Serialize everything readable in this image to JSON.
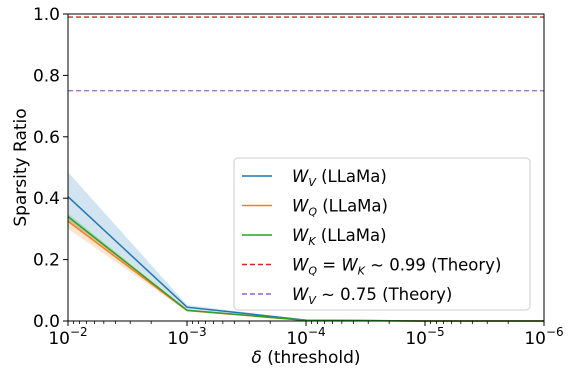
{
  "chart_data": {
    "type": "line",
    "title": "",
    "xlabel": "δ (threshold)",
    "ylabel": "Sparsity Ratio",
    "x_scale": "log-reversed",
    "x_ticks": [
      {
        "value": 0.01,
        "base": "10",
        "exp": "−2"
      },
      {
        "value": 0.001,
        "base": "10",
        "exp": "−3"
      },
      {
        "value": 0.0001,
        "base": "10",
        "exp": "−4"
      },
      {
        "value": 1e-05,
        "base": "10",
        "exp": "−5"
      },
      {
        "value": 1e-06,
        "base": "10",
        "exp": "−6"
      }
    ],
    "xlim": [
      0.01,
      1e-06
    ],
    "ylim": [
      0.0,
      1.0
    ],
    "y_ticks": [
      "0.0",
      "0.2",
      "0.4",
      "0.6",
      "0.8",
      "1.0"
    ],
    "grid": false,
    "legend_position": "lower-right",
    "x": [
      0.01,
      0.001,
      0.0001,
      1e-05,
      1e-06
    ],
    "series": [
      {
        "name": "W_V (LLaMa)",
        "label_main": "W",
        "label_sub": "V",
        "label_rest": " (LLaMa)",
        "color": "#1f77b4",
        "style": "solid",
        "values": [
          0.405,
          0.045,
          0.003,
          0.0,
          0.0
        ],
        "band_upper": [
          0.485,
          0.052,
          0.004,
          0.0,
          0.0
        ],
        "band_lower": [
          0.33,
          0.038,
          0.002,
          0.0,
          0.0
        ]
      },
      {
        "name": "W_Q (LLaMa)",
        "label_main": "W",
        "label_sub": "Q",
        "label_rest": " (LLaMa)",
        "color": "#ff7f0e",
        "style": "solid",
        "values": [
          0.325,
          0.034,
          0.002,
          0.0,
          0.0
        ],
        "band_upper": [
          0.335,
          0.036,
          0.003,
          0.0,
          0.0
        ],
        "band_lower": [
          0.3,
          0.031,
          0.001,
          0.0,
          0.0
        ]
      },
      {
        "name": "W_K (LLaMa)",
        "label_main": "W",
        "label_sub": "K",
        "label_rest": " (LLaMa)",
        "color": "#2ca02c",
        "style": "solid",
        "values": [
          0.34,
          0.035,
          0.002,
          0.0,
          0.0
        ],
        "band_upper": [
          0.35,
          0.037,
          0.003,
          0.0,
          0.0
        ],
        "band_lower": [
          0.325,
          0.033,
          0.001,
          0.0,
          0.0
        ]
      },
      {
        "name": "W_Q = W_K ~ 0.99 (Theory)",
        "label_text": "W_Q = W_K ∼ 0.99 (Theory)",
        "color": "#d62728",
        "style": "dashed",
        "constant": 0.99
      },
      {
        "name": "W_V ~ 0.75 (Theory)",
        "label_text": "W_V ∼ 0.75 (Theory)",
        "color": "#9467bd",
        "style": "dashed",
        "constant": 0.75
      }
    ]
  }
}
